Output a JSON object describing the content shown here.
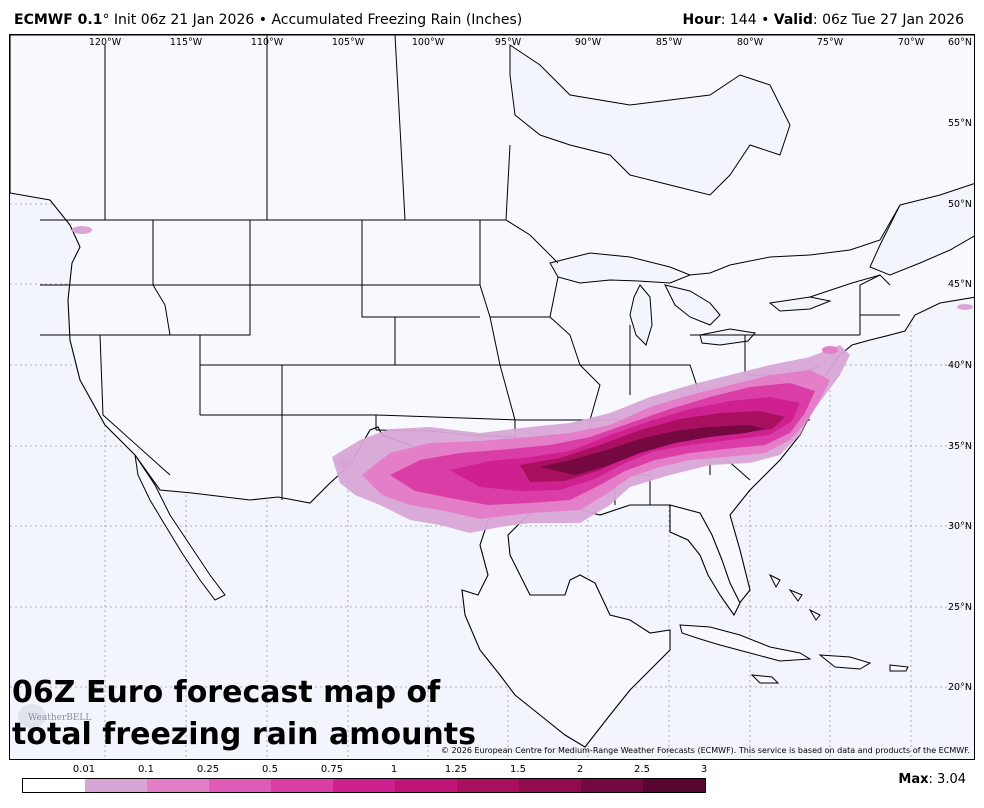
{
  "header": {
    "model": "ECMWF 0.1",
    "degree": "°",
    "init": "Init 06z 21 Jan 2026",
    "sep": "•",
    "product": "Accumulated Freezing Rain (Inches)",
    "hour_label": "Hour",
    "hour_value": ": 144",
    "valid_label": "Valid",
    "valid_value": ": 06z Tue 27 Jan 2026"
  },
  "map": {
    "lon_labels": [
      "120°W",
      "115°W",
      "110°W",
      "105°W",
      "100°W",
      "95°W",
      "90°W",
      "85°W",
      "80°W",
      "75°W",
      "70°W",
      "60°N"
    ],
    "lat_labels": [
      "55°N",
      "50°N",
      "45°N",
      "40°N",
      "35°N",
      "30°N",
      "25°N",
      "20°N"
    ],
    "caption_line1": "06Z Euro forecast map of",
    "caption_line2": "total freezing rain amounts",
    "logo_text": "WeatherBELL",
    "copyright": "© 2026 European Centre for Medium-Range Weather Forecasts (ECMWF). This service is based on data and products of the ECMWF."
  },
  "legend": {
    "ticks": [
      "0.01",
      "0.1",
      "0.25",
      "0.5",
      "0.75",
      "1",
      "1.25",
      "1.5",
      "2",
      "2.5",
      "3"
    ],
    "colors": [
      "#ffffff",
      "#d8a6d6",
      "#e47ec9",
      "#e05ab8",
      "#da3ea6",
      "#cf2090",
      "#c01478",
      "#a8105f",
      "#900c4e",
      "#740840",
      "#590531"
    ],
    "max_label": "Max",
    "max_value": ": 3.04"
  }
}
